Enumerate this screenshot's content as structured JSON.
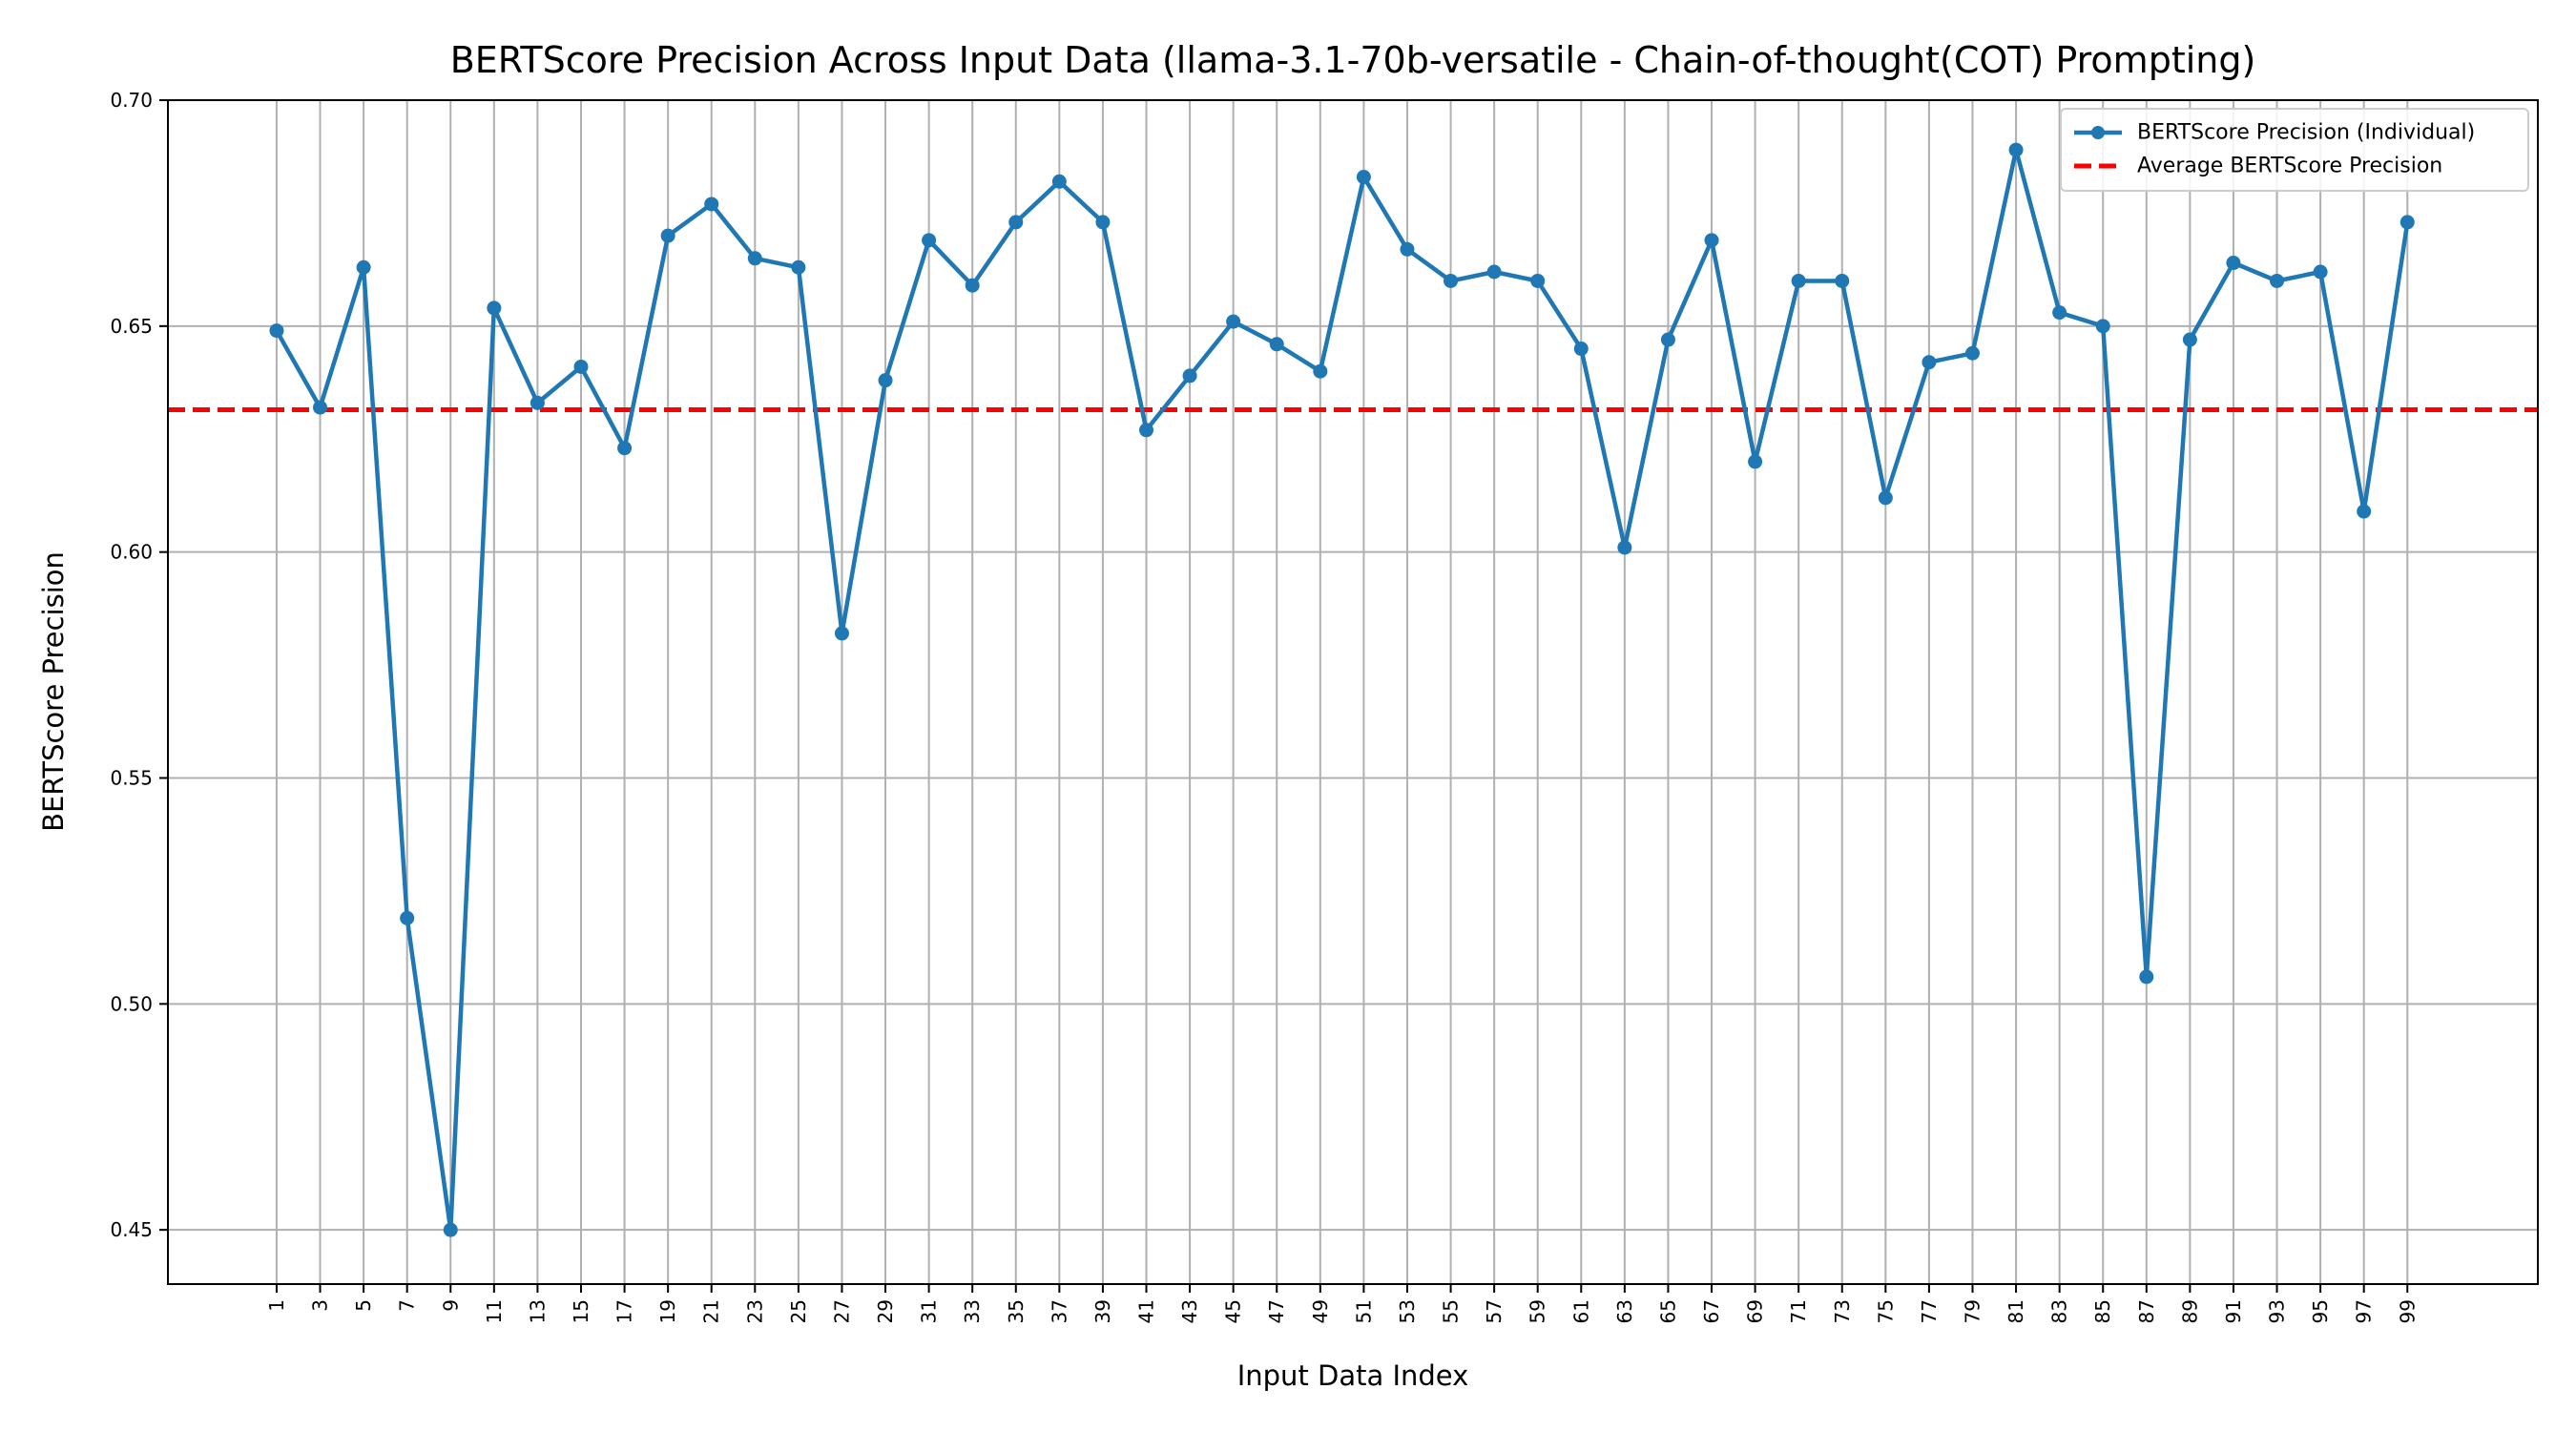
{
  "chart_data": {
    "type": "line",
    "title": "BERTScore Precision Across Input Data (llama-3.1-70b-versatile - Chain-of-thought(COT) Prompting)",
    "xlabel": "Input Data Index",
    "ylabel": "BERTScore Precision",
    "x": [
      1,
      3,
      5,
      7,
      9,
      11,
      13,
      15,
      17,
      19,
      21,
      23,
      25,
      27,
      29,
      31,
      33,
      35,
      37,
      39,
      41,
      43,
      45,
      47,
      49,
      51,
      53,
      55,
      57,
      59,
      61,
      63,
      65,
      67,
      69,
      71,
      73,
      75,
      77,
      79,
      81,
      83,
      85,
      87,
      89,
      91,
      93,
      95,
      97,
      99
    ],
    "x_tick_labels": [
      "1",
      "3",
      "5",
      "7",
      "9",
      "11",
      "13",
      "15",
      "17",
      "19",
      "21",
      "23",
      "25",
      "27",
      "29",
      "31",
      "33",
      "35",
      "37",
      "39",
      "41",
      "43",
      "45",
      "47",
      "49",
      "51",
      "53",
      "55",
      "57",
      "59",
      "61",
      "63",
      "65",
      "67",
      "69",
      "71",
      "73",
      "75",
      "77",
      "79",
      "81",
      "83",
      "85",
      "87",
      "89",
      "91",
      "93",
      "95",
      "97",
      "99"
    ],
    "xlim": [
      -4,
      105
    ],
    "ylim": [
      0.438,
      0.7
    ],
    "y_ticks": [
      0.45,
      0.5,
      0.55,
      0.6,
      0.65,
      0.7
    ],
    "y_tick_labels": [
      "0.45",
      "0.50",
      "0.55",
      "0.60",
      "0.65",
      "0.70"
    ],
    "grid": true,
    "legend_position": "top-right",
    "series": [
      {
        "name": "BERTScore Precision (Individual)",
        "color": "#1f77b4",
        "style": "line-with-markers",
        "values": [
          0.649,
          0.632,
          0.663,
          0.519,
          0.45,
          0.654,
          0.633,
          0.641,
          0.623,
          0.67,
          0.677,
          0.665,
          0.663,
          0.582,
          0.638,
          0.669,
          0.659,
          0.673,
          0.682,
          0.673,
          0.627,
          0.639,
          0.651,
          0.646,
          0.64,
          0.683,
          0.667,
          0.66,
          0.662,
          0.66,
          0.645,
          0.601,
          0.647,
          0.669,
          0.62,
          0.66,
          0.66,
          0.612,
          0.642,
          0.644,
          0.689,
          0.653,
          0.65,
          0.506,
          0.647,
          0.664,
          0.66,
          0.662,
          0.609,
          0.673
        ]
      },
      {
        "name": "Average BERTScore Precision",
        "color": "#ff0000",
        "style": "dashed-horizontal",
        "value": 0.6315
      }
    ]
  }
}
